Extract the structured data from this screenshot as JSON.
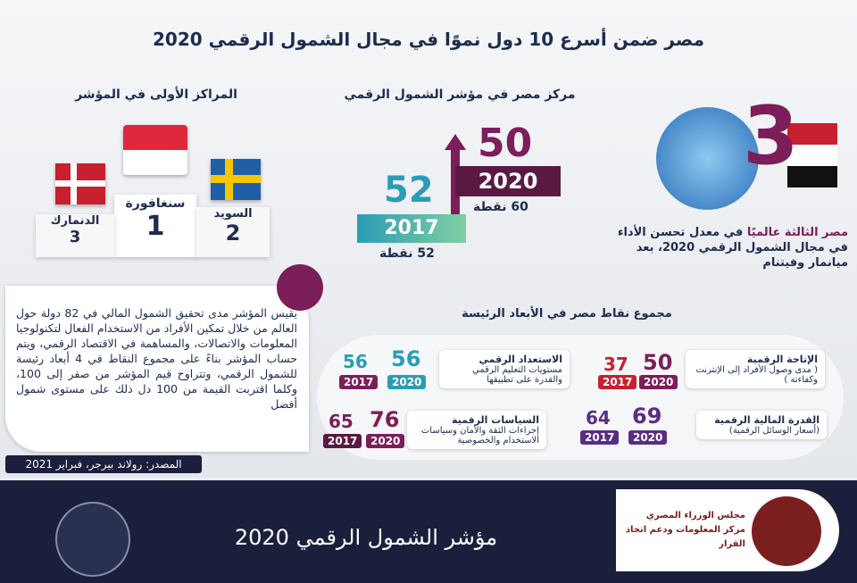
{
  "title": "مصر ضمن أسرع 10 دول نموًا في مجال الشمول الرقمي 2020",
  "podium": {
    "heading": "المراكز الأولى في المؤشر",
    "places": [
      {
        "country": "سنغافورة",
        "rank": 1
      },
      {
        "country": "السويد",
        "rank": 2
      },
      {
        "country": "الدنمارك",
        "rank": 3
      }
    ]
  },
  "rank": {
    "heading": "مركز مصر في مؤشر الشمول الرقمي",
    "rank_2020": 50,
    "year_2020": 2020,
    "points_2020": "60 نقطة",
    "rank_2017": 52,
    "year_2017": 2017,
    "points_2017": "52 نقطة"
  },
  "global": {
    "badge": 3,
    "highlight": "مصر الثالثة عالميًا",
    "text": "في معدل تحسن الأداء في مجال الشمول الرقمي 2020، بعد ميانمار وفيتنام"
  },
  "description": "يقيس المؤشر مدى تحقيق الشمول المالي في 82 دولة حول العالم من خلال تمكين الأفراد من الاستخدام الفعال لتكنولوجيا المعلومات والاتصالات، والمساهمة في الاقتصاد الرقمي، ويتم حساب المؤشر بناءً على مجموع النقاط في 4 أبعاد رئيسة للشمول الرقمي، وتتراوح قيم المؤشر من صفر إلى 100، وكلما اقتربت القيمة من 100 دل ذلك على مستوى شمول أفضل",
  "source": "المصدر: رولاند بيرجر، فبراير 2021",
  "dimensions": {
    "heading": "مجموع نقاط مصر في الأبعاد الرئيسة",
    "years": [
      2020,
      2017
    ],
    "items": [
      {
        "name": "الإتاحة الرقمية",
        "detail": "( مدى وصول الأفراد إلى الإنترنت وكفاءته )",
        "score_2020": 50,
        "score_2017": 37
      },
      {
        "name": "الاستعداد الرقمي",
        "detail": "مستويات التعليم الرقمي والقدرة على تطبيقها",
        "score_2020": 56,
        "score_2017": 56
      },
      {
        "name": "القدرة المالية الرقمية",
        "detail": "(أسعار الوسائل الرقمية)",
        "score_2020": 69,
        "score_2017": 64
      },
      {
        "name": "السياسات الرقمية",
        "detail": "إجراءات الثقة والأمان وسياسات الاستخدام والخصوصية",
        "score_2020": 76,
        "score_2017": 65
      }
    ]
  },
  "footer": {
    "title": "مؤشر الشمول الرقمي 2020",
    "org_line1": "مجلس الوزراء المصري",
    "org_line2": "مركز المعلومات ودعم اتخاذ القرار"
  }
}
